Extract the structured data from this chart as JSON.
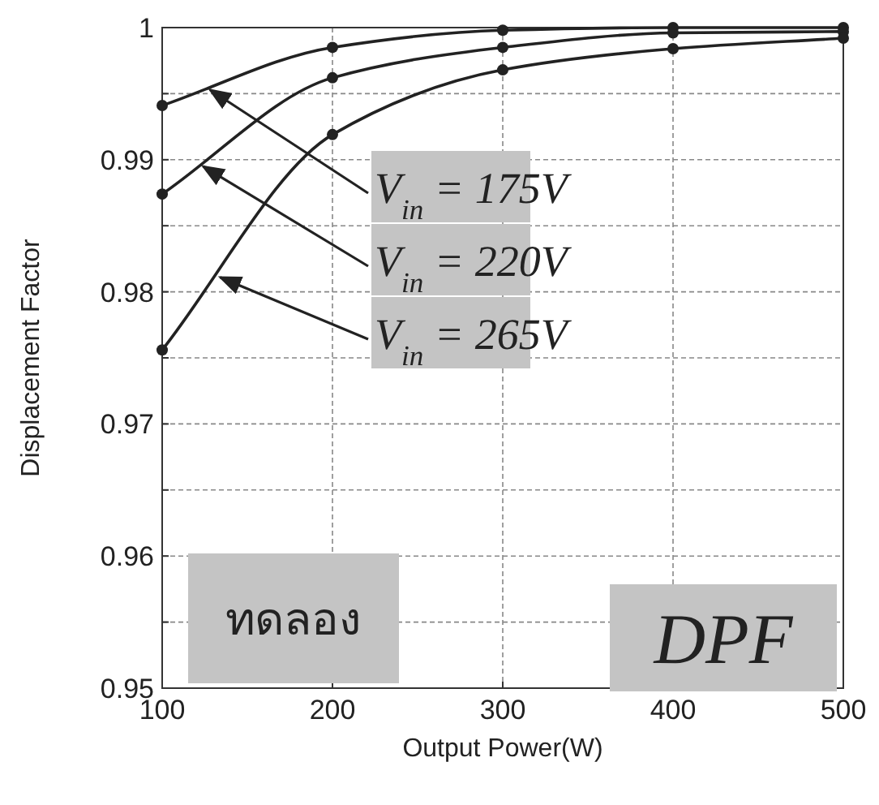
{
  "chart_data": {
    "type": "line",
    "xlabel": "Output Power(W)",
    "ylabel": "Displacement Factor",
    "x": [
      100,
      200,
      300,
      400,
      500
    ],
    "series": [
      {
        "color": "#222222",
        "values": [
          0.9941,
          0.9985,
          0.9998,
          1.0,
          1.0
        ]
      },
      {
        "color": "#222222",
        "values": [
          0.9874,
          0.9962,
          0.9985,
          0.9996,
          0.9997
        ]
      },
      {
        "color": "#222222",
        "values": [
          0.9756,
          0.9919,
          0.9968,
          0.9984,
          0.9992
        ]
      }
    ],
    "xlim": [
      100,
      500
    ],
    "xticks": [
      100,
      200,
      300,
      400,
      500
    ],
    "ylim": [
      0.95,
      1
    ],
    "yticks": [
      0.95,
      {
        "value": 0.955,
        "label": null
      },
      0.96,
      {
        "value": 0.965,
        "label": null
      },
      0.97,
      {
        "value": 0.975,
        "label": null
      },
      0.98,
      {
        "value": 0.985,
        "label": null
      },
      0.99,
      {
        "value": 0.995,
        "label": null
      },
      {
        "value": 1,
        "label": "1"
      }
    ],
    "grid": true,
    "marker": "circle",
    "line_style": "solid",
    "annotations": [
      {
        "text": "V$_{in}$ = 175V",
        "x": 128,
        "y": 0.9953
      },
      {
        "text": "V$_{in}$ = 220V",
        "x": 124,
        "y": 0.9895
      },
      {
        "text": "V$_{in}$ = 265V",
        "x": 134,
        "y": 0.9811
      },
      "ทดลอง",
      "DPF"
    ]
  }
}
